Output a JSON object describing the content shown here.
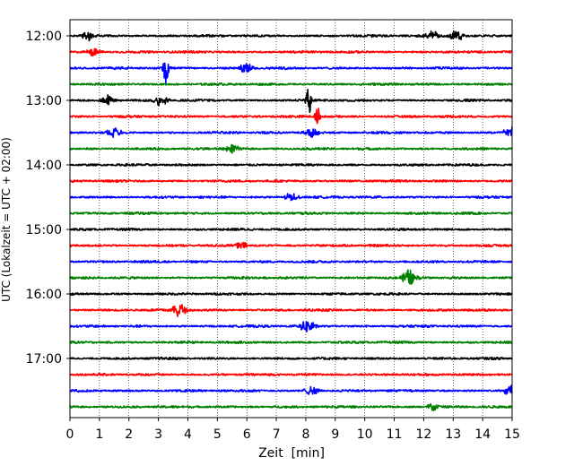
{
  "chart_data": {
    "type": "line",
    "title": "",
    "xlabel": "Zeit  [min]",
    "ylabel": "UTC (Lokalzeit = UTC + 02:00)",
    "xlim": [
      0,
      15
    ],
    "x_ticks": [
      0,
      1,
      2,
      3,
      4,
      5,
      6,
      7,
      8,
      9,
      10,
      11,
      12,
      13,
      14,
      15
    ],
    "grid": "vertical dotted lines at each minute",
    "y_tick_labels": [
      "12:00",
      "13:00",
      "14:00",
      "15:00",
      "16:00",
      "17:00"
    ],
    "trace_interval_minutes": 15,
    "trace_start_times": [
      "12:00",
      "12:15",
      "12:30",
      "12:45",
      "13:00",
      "13:15",
      "13:30",
      "13:45",
      "14:00",
      "14:15",
      "14:30",
      "14:45",
      "15:00",
      "15:15",
      "15:30",
      "15:45",
      "16:00",
      "16:15",
      "16:30",
      "16:45",
      "17:00",
      "17:15",
      "17:30",
      "17:45"
    ],
    "color_cycle": [
      "#000000",
      "#ff0000",
      "#0000ff",
      "#008000"
    ],
    "events": [
      {
        "trace": "12:00",
        "x_min": 0.6,
        "amp": 0.35
      },
      {
        "trace": "12:00",
        "x_min": 12.3,
        "amp": 0.35
      },
      {
        "trace": "12:00",
        "x_min": 13.1,
        "amp": 0.4
      },
      {
        "trace": "12:15",
        "x_min": 0.8,
        "amp": 0.3
      },
      {
        "trace": "12:30",
        "x_min": 3.25,
        "amp": 1.1
      },
      {
        "trace": "12:30",
        "x_min": 6.0,
        "amp": 0.35
      },
      {
        "trace": "13:00",
        "x_min": 1.3,
        "amp": 0.4
      },
      {
        "trace": "13:00",
        "x_min": 3.1,
        "amp": 0.45
      },
      {
        "trace": "13:00",
        "x_min": 8.1,
        "amp": 1.1
      },
      {
        "trace": "13:15",
        "x_min": 8.4,
        "amp": 0.8
      },
      {
        "trace": "13:30",
        "x_min": 1.5,
        "amp": 0.3
      },
      {
        "trace": "13:30",
        "x_min": 8.2,
        "amp": 0.35
      },
      {
        "trace": "13:30",
        "x_min": 14.95,
        "amp": 0.45
      },
      {
        "trace": "13:45",
        "x_min": 5.5,
        "amp": 0.3
      },
      {
        "trace": "14:30",
        "x_min": 7.5,
        "amp": 0.3
      },
      {
        "trace": "15:15",
        "x_min": 5.8,
        "amp": 0.25
      },
      {
        "trace": "15:45",
        "x_min": 11.5,
        "amp": 0.55
      },
      {
        "trace": "16:15",
        "x_min": 3.7,
        "amp": 0.5
      },
      {
        "trace": "16:30",
        "x_min": 8.05,
        "amp": 0.5
      },
      {
        "trace": "17:30",
        "x_min": 8.2,
        "amp": 0.3
      },
      {
        "trace": "17:30",
        "x_min": 14.95,
        "amp": 0.35
      },
      {
        "trace": "17:45",
        "x_min": 12.3,
        "amp": 0.3
      }
    ]
  }
}
